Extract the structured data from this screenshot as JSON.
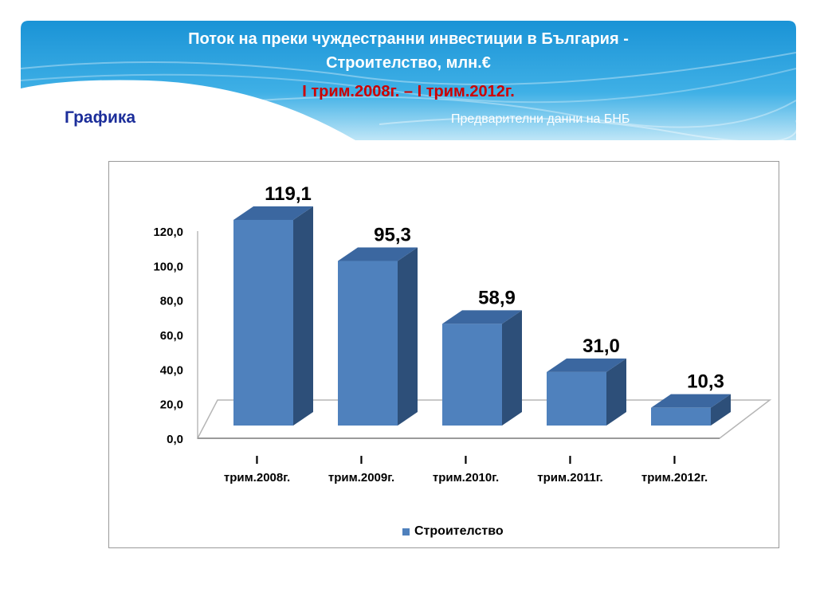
{
  "slide": {
    "title_line1": "Поток на преки чуждестранни инвестиции в България -",
    "title_line2": "Строителство, млн.€",
    "period": "І трим.2008г. – І трим.2012г.",
    "section_label": "Графика",
    "source_note": "Предварителни данни на БНБ"
  },
  "colors": {
    "header_blue": "#1a9ad9",
    "bar_front": "#4f81bd",
    "bar_side": "#2d4f79",
    "bar_top": "#3b67a0",
    "period_red": "#cc0000",
    "label_blue": "#1c2e9a"
  },
  "chart_data": {
    "type": "bar",
    "categories": [
      "І трим.2008г.",
      "І трим.2009г.",
      "І трим.2010г.",
      "І трим.2011г.",
      "І трим.2012г."
    ],
    "category_lines": [
      [
        "І",
        "трим.2008г."
      ],
      [
        "І",
        "трим.2009г."
      ],
      [
        "І",
        "трим.2010г."
      ],
      [
        "І",
        "трим.2011г."
      ],
      [
        "І",
        "трим.2012г."
      ]
    ],
    "series": [
      {
        "name": "Строителство",
        "values": [
          119.1,
          95.3,
          58.9,
          31.0,
          10.3
        ]
      }
    ],
    "data_labels": [
      "119,1",
      "95,3",
      "58,9",
      "31,0",
      "10,3"
    ],
    "y_ticks": [
      "0,0",
      "20,0",
      "40,0",
      "60,0",
      "80,0",
      "100,0",
      "120,0"
    ],
    "ylim": [
      0,
      120
    ],
    "legend": "bottom",
    "three_d": true,
    "grid": false
  }
}
